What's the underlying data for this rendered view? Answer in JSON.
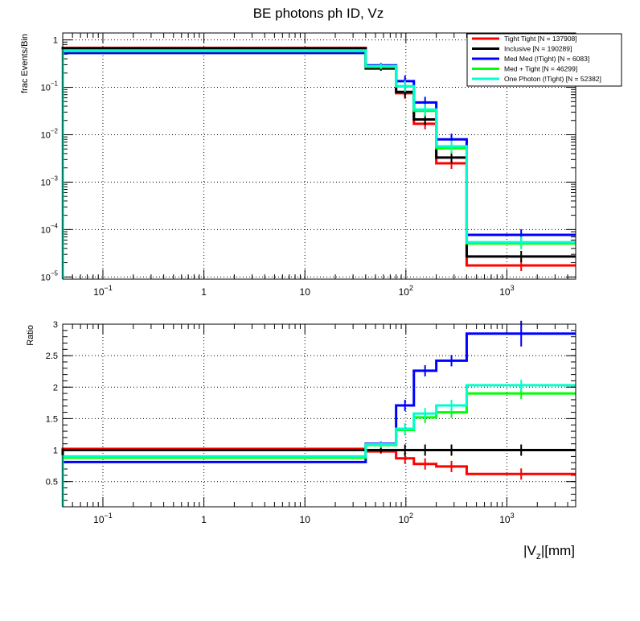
{
  "title": "BE photons ph ID, Vz",
  "top_ylabel": "frac Events/Bin",
  "bottom_ylabel": "Ratio",
  "xlabel_main": "|V",
  "xlabel_sub": "z",
  "xlabel_tail": "|[mm]",
  "x_ticks": [
    {
      "v": 0.1,
      "base": "10",
      "exp": "−1"
    },
    {
      "v": 1,
      "base": "1",
      "exp": ""
    },
    {
      "v": 10,
      "base": "10",
      "exp": ""
    },
    {
      "v": 100,
      "base": "10",
      "exp": "2"
    },
    {
      "v": 1000,
      "base": "10",
      "exp": "3"
    }
  ],
  "top_y_ticks": [
    {
      "v": 1,
      "base": "1",
      "exp": ""
    },
    {
      "v": 0.1,
      "base": "10",
      "exp": "−1"
    },
    {
      "v": 0.01,
      "base": "10",
      "exp": "−2"
    },
    {
      "v": 0.001,
      "base": "10",
      "exp": "−3"
    },
    {
      "v": 0.0001,
      "base": "10",
      "exp": "−4"
    },
    {
      "v": 1e-05,
      "base": "10",
      "exp": "−5"
    }
  ],
  "bottom_y_ticks": [
    {
      "v": 0.5,
      "label": "0.5"
    },
    {
      "v": 1,
      "label": "1"
    },
    {
      "v": 1.5,
      "label": "1.5"
    },
    {
      "v": 2,
      "label": "2"
    },
    {
      "v": 2.5,
      "label": "2.5"
    },
    {
      "v": 3,
      "label": "3"
    }
  ],
  "chart_data": [
    {
      "type": "line",
      "scale": "log-log",
      "grid": true,
      "legend_position": "top-right",
      "title": "BE photons ph ID, Vz",
      "ylabel": "frac Events/Bin",
      "xlim": [
        0.04,
        4800
      ],
      "ylim": [
        9e-06,
        1.4
      ],
      "bin_edges": [
        0.04,
        40,
        80,
        120,
        200,
        400,
        4800
      ],
      "series": [
        {
          "name": "Tight Tight [N = 137908]",
          "color": "#ff0000",
          "values": [
            0.68,
            0.27,
            0.075,
            0.017,
            0.0025,
            1.75e-05
          ]
        },
        {
          "name": "Inclusive [N = 190289]",
          "color": "#000000",
          "values": [
            0.66,
            0.25,
            0.08,
            0.021,
            0.0033,
            2.7e-05
          ]
        },
        {
          "name": "Med Med (!Tight) [N = 6083]",
          "color": "#0000ff",
          "values": [
            0.53,
            0.29,
            0.135,
            0.048,
            0.008,
            7.7e-05
          ]
        },
        {
          "name": "Med + Tight [N = 46299]",
          "color": "#00ff00",
          "values": [
            0.58,
            0.27,
            0.105,
            0.032,
            0.0052,
            5.1e-05
          ]
        },
        {
          "name": "One Photon (!Tight) [N = 52382]",
          "color": "#00ffcc",
          "values": [
            0.6,
            0.28,
            0.105,
            0.034,
            0.0057,
            5.4e-05
          ]
        }
      ]
    },
    {
      "type": "line",
      "scale": "log-x",
      "grid": true,
      "ylabel": "Ratio",
      "xlabel": "|Vz|[mm]",
      "xlim": [
        0.04,
        4800
      ],
      "ylim": [
        0.1,
        3.0
      ],
      "bin_edges": [
        0.04,
        40,
        80,
        120,
        200,
        400,
        4800
      ],
      "series": [
        {
          "color": "#ff0000",
          "values": [
            1.02,
            0.98,
            0.87,
            0.78,
            0.74,
            0.62
          ]
        },
        {
          "color": "#000000",
          "values": [
            1.0,
            1.0,
            1.0,
            1.0,
            1.0,
            1.0
          ]
        },
        {
          "color": "#0000ff",
          "values": [
            0.81,
            1.1,
            1.71,
            2.26,
            2.42,
            2.85
          ]
        },
        {
          "color": "#00ff00",
          "values": [
            0.88,
            1.08,
            1.32,
            1.52,
            1.6,
            1.9
          ]
        },
        {
          "color": "#00ffcc",
          "values": [
            0.9,
            1.09,
            1.34,
            1.58,
            1.71,
            2.03
          ]
        }
      ]
    }
  ]
}
